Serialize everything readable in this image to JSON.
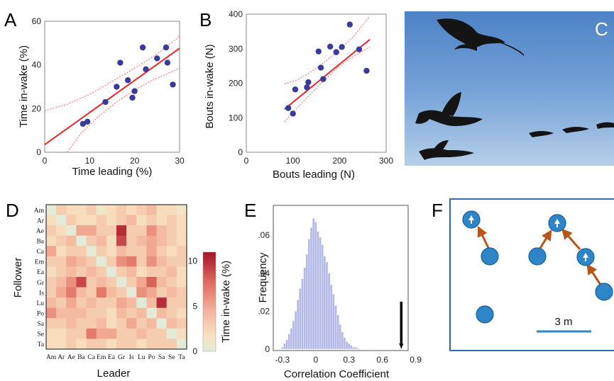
{
  "panel_letters": {
    "A": "A",
    "B": "B",
    "C": "C",
    "D": "D",
    "E": "E",
    "F": "F"
  },
  "colors": {
    "point": "#3a3a9c",
    "fit": "#e8262a",
    "ci": "#f0787a",
    "hist": "#b3b8e6",
    "node": "#2e86c8",
    "arrow": "#b5561a",
    "scale": "#2a86c8",
    "frame_f": "#2e6bb0"
  },
  "chart_data": [
    {
      "id": "A",
      "type": "scatter",
      "xlabel": "Time leading (%)",
      "ylabel": "Time in-wake (%)",
      "xlim": [
        0,
        30
      ],
      "ylim": [
        0,
        60
      ],
      "xticks": [
        "0",
        "10",
        "20",
        "30"
      ],
      "yticks": [
        "0",
        "20",
        "40",
        "60"
      ],
      "points": [
        [
          8.5,
          13
        ],
        [
          9.5,
          14
        ],
        [
          13.5,
          23
        ],
        [
          16,
          30
        ],
        [
          16.8,
          41
        ],
        [
          18.5,
          33
        ],
        [
          19.5,
          25
        ],
        [
          20,
          28
        ],
        [
          21.8,
          48
        ],
        [
          22.5,
          38
        ],
        [
          25,
          43
        ],
        [
          27,
          48
        ],
        [
          27.3,
          41
        ],
        [
          28.5,
          31
        ]
      ],
      "fit": {
        "intercept": 3.5,
        "slope": 1.47
      },
      "ci_upper": [
        [
          0,
          19
        ],
        [
          5,
          22
        ],
        [
          10,
          26.5
        ],
        [
          15,
          32.5
        ],
        [
          20,
          38.5
        ],
        [
          25,
          45
        ],
        [
          30,
          53
        ]
      ],
      "ci_lower": [
        [
          5,
          0
        ],
        [
          8,
          8.5
        ],
        [
          12,
          16.5
        ],
        [
          16,
          23
        ],
        [
          20,
          28.5
        ],
        [
          24,
          33
        ],
        [
          30,
          38.5
        ]
      ]
    },
    {
      "id": "B",
      "type": "scatter",
      "xlabel": "Bouts leading (N)",
      "ylabel": "Bouts in-wake (N)",
      "xlim": [
        0,
        300
      ],
      "ylim": [
        0,
        400
      ],
      "xticks": [
        "0",
        "100",
        "200",
        "300"
      ],
      "yticks": [
        "0",
        "100",
        "200",
        "300",
        "400"
      ],
      "points": [
        [
          90,
          128
        ],
        [
          100,
          112
        ],
        [
          105,
          182
        ],
        [
          130,
          188
        ],
        [
          133,
          203
        ],
        [
          155,
          292
        ],
        [
          160,
          245
        ],
        [
          165,
          212
        ],
        [
          180,
          306
        ],
        [
          193,
          290
        ],
        [
          205,
          305
        ],
        [
          222,
          370
        ],
        [
          242,
          298
        ],
        [
          258,
          236
        ]
      ],
      "fit": {
        "intercept": 35,
        "slope": 1.1,
        "x_range": [
          82,
          265
        ]
      },
      "ci_upper": [
        [
          82,
          198
        ],
        [
          110,
          210
        ],
        [
          140,
          234
        ],
        [
          170,
          263
        ],
        [
          200,
          297
        ],
        [
          230,
          335
        ],
        [
          265,
          395
        ]
      ],
      "ci_lower": [
        [
          82,
          88
        ],
        [
          110,
          130
        ],
        [
          140,
          172
        ],
        [
          170,
          212
        ],
        [
          200,
          250
        ],
        [
          230,
          278
        ],
        [
          265,
          305
        ]
      ]
    },
    {
      "id": "D",
      "type": "heatmap",
      "xlabel": "Leader",
      "ylabel": "Follower",
      "birds": [
        "Am",
        "Ar",
        "Ae",
        "Ba",
        "Ca",
        "Em",
        "Ea",
        "Gr",
        "Is",
        "Lu",
        "Po",
        "Sa",
        "Se",
        "Ta"
      ],
      "colorbar_label": "Time in-wake (%)",
      "colorbar_ticks": [
        "0",
        "5",
        "10"
      ],
      "vmin": 0,
      "vmax": 11,
      "matrix": [
        [
          0,
          3,
          2,
          2,
          3,
          1,
          2,
          3,
          2,
          3,
          4,
          2,
          2,
          1
        ],
        [
          2,
          0,
          3,
          2,
          2,
          3,
          2,
          3,
          4,
          2,
          3,
          2,
          3,
          2
        ],
        [
          3,
          2,
          0,
          5,
          5,
          3,
          3,
          10,
          3,
          3,
          6,
          4,
          3,
          2
        ],
        [
          2,
          3,
          4,
          0,
          3,
          4,
          2,
          9,
          3,
          4,
          5,
          4,
          3,
          2
        ],
        [
          5,
          2,
          3,
          3,
          0,
          3,
          2,
          4,
          3,
          3,
          5,
          3,
          2,
          3
        ],
        [
          3,
          3,
          5,
          4,
          3,
          0,
          3,
          6,
          7,
          3,
          6,
          4,
          3,
          3
        ],
        [
          2,
          3,
          4,
          3,
          4,
          3,
          0,
          3,
          4,
          2,
          3,
          3,
          4,
          2
        ],
        [
          3,
          4,
          6,
          9,
          3,
          4,
          3,
          0,
          3,
          5,
          8,
          4,
          3,
          2
        ],
        [
          3,
          5,
          7,
          4,
          3,
          7,
          4,
          3,
          0,
          6,
          5,
          3,
          4,
          3
        ],
        [
          4,
          3,
          5,
          3,
          4,
          3,
          3,
          5,
          4,
          0,
          4,
          10,
          3,
          3
        ],
        [
          6,
          4,
          4,
          4,
          3,
          3,
          2,
          4,
          3,
          4,
          0,
          4,
          3,
          2
        ],
        [
          3,
          3,
          4,
          3,
          3,
          4,
          2,
          3,
          5,
          3,
          4,
          0,
          4,
          3
        ],
        [
          2,
          2,
          3,
          3,
          7,
          5,
          5,
          3,
          3,
          4,
          3,
          3,
          0,
          2
        ],
        [
          2,
          2,
          3,
          2,
          3,
          3,
          2,
          3,
          3,
          2,
          3,
          3,
          3,
          0
        ]
      ]
    },
    {
      "id": "E",
      "type": "bar",
      "xlabel": "Correlation Coefficient",
      "ylabel": "Frequency",
      "xlim": [
        -0.35,
        0.8
      ],
      "ylim": [
        0,
        0.072
      ],
      "xticks": [
        "-0.3",
        "0",
        "0.3",
        "0.6",
        "0.9"
      ],
      "yticks": [
        "0",
        ".02",
        ".04",
        ".06"
      ],
      "bin_width": 0.02,
      "observed_value": 0.77,
      "bins": [
        [
          -0.3,
          0.001
        ],
        [
          -0.28,
          0.003
        ],
        [
          -0.26,
          0.005
        ],
        [
          -0.24,
          0.008
        ],
        [
          -0.22,
          0.011
        ],
        [
          -0.2,
          0.015
        ],
        [
          -0.18,
          0.02
        ],
        [
          -0.16,
          0.026
        ],
        [
          -0.14,
          0.032
        ],
        [
          -0.12,
          0.037
        ],
        [
          -0.1,
          0.043
        ],
        [
          -0.08,
          0.05
        ],
        [
          -0.06,
          0.058
        ],
        [
          -0.04,
          0.064
        ],
        [
          -0.02,
          0.069
        ],
        [
          0.0,
          0.067
        ],
        [
          0.02,
          0.062
        ],
        [
          0.04,
          0.059
        ],
        [
          0.06,
          0.055
        ],
        [
          0.08,
          0.049
        ],
        [
          0.1,
          0.046
        ],
        [
          0.12,
          0.04
        ],
        [
          0.14,
          0.034
        ],
        [
          0.16,
          0.029
        ],
        [
          0.18,
          0.023
        ],
        [
          0.2,
          0.018
        ],
        [
          0.22,
          0.013
        ],
        [
          0.24,
          0.009
        ],
        [
          0.26,
          0.006
        ],
        [
          0.28,
          0.004
        ],
        [
          0.3,
          0.003
        ],
        [
          0.32,
          0.002
        ],
        [
          0.34,
          0.001
        ],
        [
          0.36,
          0.001
        ],
        [
          0.38,
          0.0005
        ]
      ]
    }
  ],
  "panel_f": {
    "scale_label": "3 m"
  }
}
